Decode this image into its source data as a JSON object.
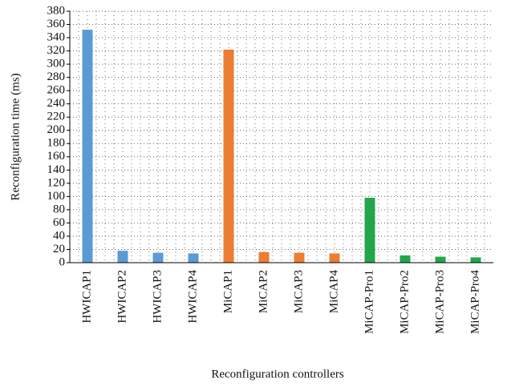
{
  "chart_data": {
    "type": "bar",
    "x_label": "Reconfiguration controllers",
    "y_label": "Reconfiguration time (ms)",
    "categories": [
      "HWICAP1",
      "HWICAP2",
      "HWICAP3",
      "HWICAP4",
      "MiCAP1",
      "MiCAP2",
      "MiCAP3",
      "MiCAP4",
      "MiCAP-Pro1",
      "MiCAP-Pro2",
      "MiCAP-Pro3",
      "MiCAP-Pro4"
    ],
    "values": [
      352,
      18,
      15,
      14,
      322,
      16,
      15,
      14,
      98,
      11,
      9,
      8
    ],
    "colors": [
      "#5b9bd5",
      "#5b9bd5",
      "#5b9bd5",
      "#5b9bd5",
      "#ed7d31",
      "#ed7d31",
      "#ed7d31",
      "#ed7d31",
      "#22a64b",
      "#22a64b",
      "#22a64b",
      "#22a64b"
    ],
    "ylim": [
      0,
      380
    ],
    "yticks": [
      0,
      20,
      40,
      60,
      80,
      100,
      120,
      140,
      160,
      180,
      200,
      220,
      240,
      260,
      280,
      300,
      320,
      340,
      360,
      380
    ],
    "grid": true
  }
}
